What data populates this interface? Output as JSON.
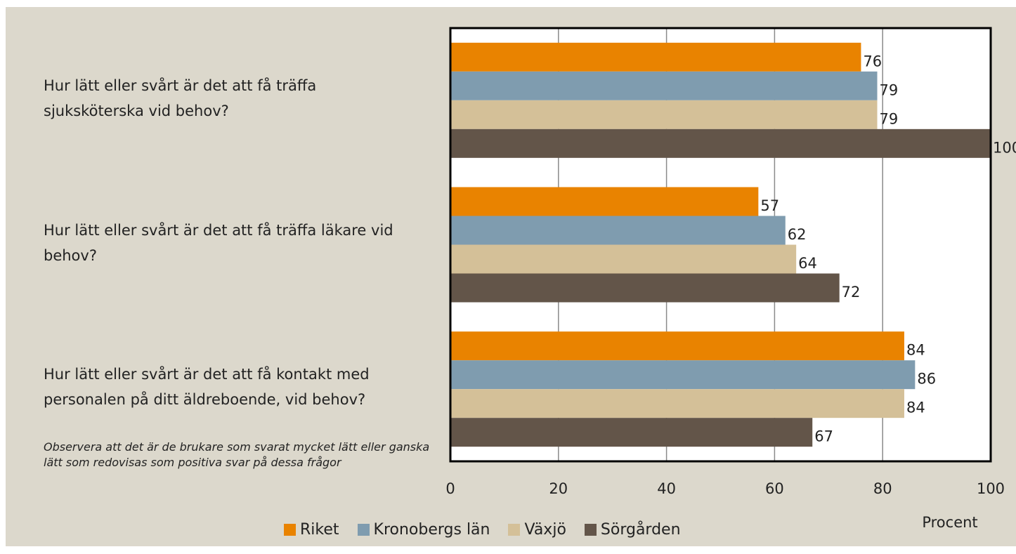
{
  "chart_data": {
    "type": "bar",
    "orientation": "horizontal",
    "categories": [
      "Hur lätt eller svårt är det att få träffa sjuksköterska vid behov?",
      "Hur lätt eller svårt är det att få träffa läkare vid behov?",
      "Hur lätt eller svårt är det att få kontakt med personalen på ditt äldreboende, vid behov?"
    ],
    "series": [
      {
        "name": "Riket",
        "color": "#e98300",
        "values": [
          76,
          57,
          84
        ]
      },
      {
        "name": "Kronobergs län",
        "color": "#7f9caf",
        "values": [
          79,
          62,
          86
        ]
      },
      {
        "name": "Växjö",
        "color": "#d4c098",
        "values": [
          79,
          64,
          84
        ]
      },
      {
        "name": "Sörgården",
        "color": "#635549",
        "values": [
          100,
          72,
          67
        ]
      }
    ],
    "xlim": [
      0,
      100
    ],
    "xticks": [
      0,
      20,
      40,
      60,
      80,
      100
    ],
    "x_label": "Procent",
    "grid": true,
    "legend": "bottom",
    "note": "Observera att det är de brukare som svarat mycket lätt eller ganska lätt som redovisas som positiva svar på dessa frågor"
  }
}
